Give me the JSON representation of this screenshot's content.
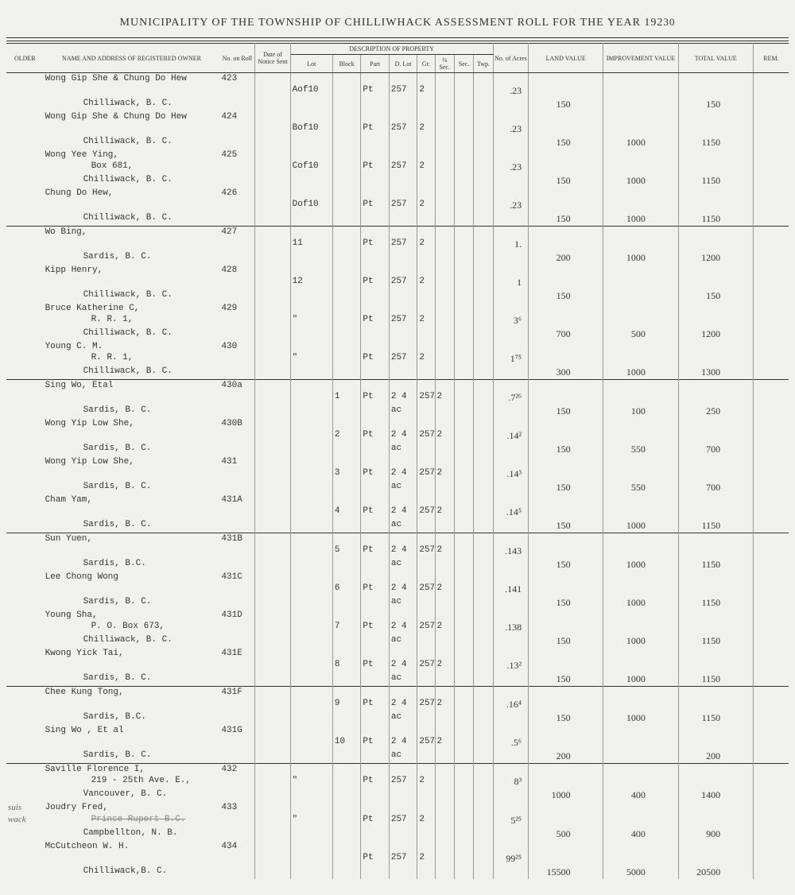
{
  "title_main": "MUNICIPALITY OF THE TOWNSHIP OF CHILLIWHACK ASSESSMENT ROLL FOR THE YEAR 192",
  "title_year_suffix": "30",
  "headers": {
    "older": "OLDER",
    "name": "NAME AND ADDRESS OF REGISTERED OWNER",
    "roll": "No. on Roll",
    "date": "Date of Notice Sent",
    "desc": "DESCRIPTION OF PROPERTY",
    "lot": "Lot",
    "block": "Block",
    "part": "Part",
    "dlot": "D. Lot",
    "gr": "Gr.",
    "qsec": "¼ Sec.",
    "sec": "Sec.",
    "twp": "Twp.",
    "acres": "No. of Acres",
    "land": "LAND VALUE",
    "imp": "IMPROVEMENT VALUE",
    "total": "TOTAL VALUE",
    "rem": "REM."
  },
  "rows": [
    {
      "name": "Wong Gip She & Chung Do Hew",
      "addr": "Chilliwack, B. C.",
      "roll": "423",
      "lot": "Aof10",
      "block": "",
      "part": "Pt",
      "dlot": "257",
      "gr": "2",
      "acres": ".23",
      "land": "150",
      "imp": "",
      "total": "150"
    },
    {
      "name": "Wong Gip She & Chung Do Hew",
      "addr": "Chilliwack, B. C.",
      "roll": "424",
      "lot": "Bof10",
      "block": "",
      "part": "Pt",
      "dlot": "257",
      "gr": "2",
      "acres": ".23",
      "land": "150",
      "imp": "1000",
      "total": "1150"
    },
    {
      "name": "Wong Yee Ying,",
      "sub": "Box 681,",
      "addr": "Chilliwack, B. C.",
      "roll": "425",
      "lot": "Cof10",
      "block": "",
      "part": "Pt",
      "dlot": "257",
      "gr": "2",
      "acres": ".23",
      "land": "150",
      "imp": "1000",
      "total": "1150"
    },
    {
      "name": "Chung Do Hew,",
      "addr": "Chilliwack, B. C.",
      "roll": "426",
      "lot": "Dof10",
      "block": "",
      "part": "Pt",
      "dlot": "257",
      "gr": "2",
      "acres": ".23",
      "land": "150",
      "imp": "1000",
      "total": "1150"
    },
    {
      "name": "Wo Bing,",
      "addr": "Sardis, B. C.",
      "roll": "427",
      "lot": "11",
      "block": "",
      "part": "Pt",
      "dlot": "257",
      "gr": "2",
      "acres": "1.",
      "land": "200",
      "imp": "1000",
      "total": "1200"
    },
    {
      "name": "Kipp Henry,",
      "addr": "Chilliwack, B. C.",
      "roll": "428",
      "lot": "12",
      "block": "",
      "part": "Pt",
      "dlot": "257",
      "gr": "2",
      "acres": "1",
      "land": "150",
      "imp": "",
      "total": "150"
    },
    {
      "name": "Bruce Katherine C,",
      "sub": "R. R. 1,",
      "addr": "Chilliwack, B. C.",
      "roll": "429",
      "lot": "\"",
      "block": "",
      "part": "Pt",
      "dlot": "257",
      "gr": "2",
      "acres": "3⁶",
      "land": "700",
      "imp": "500",
      "total": "1200"
    },
    {
      "name": "Young C. M.",
      "sub": "R. R. 1,",
      "addr": "Chilliwack, B. C.",
      "roll": "430",
      "lot": "\"",
      "block": "",
      "part": "Pt",
      "dlot": "257",
      "gr": "2",
      "acres": "1⁷⁵",
      "land": "300",
      "imp": "1000",
      "total": "1300"
    },
    {
      "name": "Sing Wo, Etal",
      "addr": "Sardis, B. C.",
      "roll": "430a",
      "lot": "",
      "block": "1",
      "part": "Pt",
      "part2": "2 4 ac",
      "dlot": "257",
      "gr": "2",
      "acres": ".7²⁶",
      "land": "150",
      "imp": "100",
      "total": "250"
    },
    {
      "name": "Wong Yip Low She,",
      "addr": "Sardis, B. C.",
      "roll": "430B",
      "lot": "",
      "block": "2",
      "part": "Pt",
      "part2": "2 4 ac",
      "dlot": "257",
      "gr": "2",
      "acres": ".14²",
      "land": "150",
      "imp": "550",
      "total": "700"
    },
    {
      "name": "Wong Yip Low She,",
      "addr": "Sardis, B. C.",
      "roll": "431",
      "lot": "",
      "block": "3",
      "part": "Pt",
      "part2": "2 4 ac",
      "dlot": "257",
      "gr": "2",
      "acres": ".14³",
      "land": "150",
      "imp": "550",
      "total": "700"
    },
    {
      "name": "Cham Yam,",
      "addr": "Sardis, B. C.",
      "roll": "431A",
      "lot": "",
      "block": "4",
      "part": "Pt",
      "part2": "2 4 ac",
      "dlot": "257",
      "gr": "2",
      "acres": ".14⁵",
      "land": "150",
      "imp": "1000",
      "total": "1150"
    },
    {
      "name": "Sun Yuen,",
      "addr": "Sardis, B.C.",
      "roll": "431B",
      "lot": "",
      "block": "5",
      "part": "Pt",
      "part2": "2 4 ac",
      "dlot": "257",
      "gr": "2",
      "acres": ".143",
      "land": "150",
      "imp": "1000",
      "total": "1150"
    },
    {
      "name": "Lee Chong Wong",
      "addr": "Sardis, B. C.",
      "roll": "431C",
      "lot": "",
      "block": "6",
      "part": "Pt",
      "part2": "2 4 ac",
      "dlot": "257",
      "gr": "2",
      "acres": ".141",
      "land": "150",
      "imp": "1000",
      "total": "1150"
    },
    {
      "name": "Young Sha,",
      "sub": "P. O. Box 673,",
      "addr": "Chilliwack, B. C.",
      "roll": "431D",
      "lot": "",
      "block": "7",
      "part": "Pt",
      "part2": "2 4 ac",
      "dlot": "257",
      "gr": "2",
      "acres": ".138",
      "land": "150",
      "imp": "1000",
      "total": "1150"
    },
    {
      "name": "Kwong Yick Tai,",
      "addr": "Sardis, B. C.",
      "roll": "431E",
      "lot": "",
      "block": "8",
      "part": "Pt",
      "part2": "2 4 ac",
      "dlot": "257",
      "gr": "2",
      "acres": ".13²",
      "land": "150",
      "imp": "1000",
      "total": "1150"
    },
    {
      "name": "Chee Kung Tong,",
      "addr": "Sardis, B.C.",
      "roll": "431F",
      "lot": "",
      "block": "9",
      "part": "Pt",
      "part2": "2 4 ac",
      "dlot": "257",
      "gr": "2",
      "acres": ".16⁴",
      "land": "150",
      "imp": "1000",
      "total": "1150"
    },
    {
      "name": "Sing Wo , Et al",
      "addr": "Sardis, B. C.",
      "roll": "431G",
      "lot": "",
      "block": "10",
      "part": "Pt",
      "part2": "2 4 ac",
      "dlot": "257",
      "gr": "2",
      "acres": ".5⁶",
      "land": "200",
      "imp": "",
      "total": "200"
    },
    {
      "name": "Saville Florence I,",
      "sub": "219 - 25th Ave. E.,",
      "addr": "Vancouver, B. C.",
      "roll": "432",
      "lot": "\"",
      "block": "",
      "part": "Pt",
      "dlot": "257",
      "gr": "2",
      "acres": "8³",
      "land": "1000",
      "imp": "400",
      "total": "1400"
    },
    {
      "name": "Joudry Fred,",
      "addr": "Campbellton, N. B.",
      "roll": "433",
      "lot": "\"",
      "block": "",
      "part": "Pt",
      "dlot": "257",
      "gr": "2",
      "acres": "5²⁵",
      "land": "500",
      "imp": "400",
      "total": "900",
      "margin": "wack",
      "margin2": "suis",
      "strike": "Prince Rupert B.C."
    },
    {
      "name": "McCutcheon W. H.",
      "addr": "Chilliwack,B. C.",
      "roll": "434",
      "lot": "",
      "block": "",
      "part": "Pt",
      "dlot": "257",
      "gr": "2",
      "acres": "99²⁵",
      "land": "15500",
      "imp": "5000",
      "total": "20500"
    }
  ],
  "section_breaks": [
    4,
    8,
    12,
    16,
    18
  ]
}
